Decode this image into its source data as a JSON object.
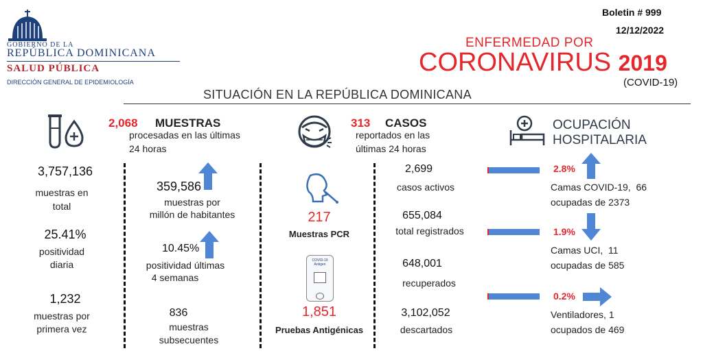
{
  "header": {
    "logo": {
      "line1": "GOBIERNO DE LA",
      "line2": "REPÚBLICA DOMINICANA",
      "line3": "SALUD PÚBLICA",
      "line4": "DIRECCIÓN GENERAL DE EPIDEMIOLOGÍA"
    },
    "bulletin": "Boletin # 999",
    "date": "12/12/2022",
    "title_top": "ENFERMEDAD POR",
    "title_main": "CORONAVIRUS",
    "title_year": "2019",
    "title_code": "(COVID-19)",
    "subtitle": "SITUACIÓN EN LA REPÚBLICA DOMINICANA"
  },
  "muestras": {
    "icon": "test-tube-drop-icon",
    "new_value": "2,068",
    "heading": "MUESTRAS",
    "desc_line1": "procesadas en las últimas",
    "desc_line2": "24 horas",
    "total_value": "3,757,136",
    "total_line1": "muestras en",
    "total_line2": "total",
    "positividad_value": "25.41%",
    "positividad_line1": "positividad",
    "positividad_line2": "diaria",
    "primera_value": "1,232",
    "primera_line1": "muestras por",
    "primera_line2": "primera vez",
    "per_million_value": "359,586",
    "per_million_line1": "muestras por",
    "per_million_line2": "millón de habitantes",
    "pos4_value": "10.45%",
    "pos4_line1": "positividad últimas",
    "pos4_line2": "4 semanas",
    "subsecuentes_value": "836",
    "subsecuentes_line1": "muestras",
    "subsecuentes_line2": "subsecuentes"
  },
  "pruebas": {
    "pcr_icon": "nasal-swab-icon",
    "pcr_value": "217",
    "pcr_label": "Muestras PCR",
    "antigen_icon": "antigen-test-icon",
    "antigen_value": "1,851",
    "antigen_label": "Pruebas Antigénicas",
    "antigen_kit_label": "COVID-19 Antigen"
  },
  "casos": {
    "icon": "sick-face-mask-icon",
    "new_value": "313",
    "heading": "CASOS",
    "desc_line1": "reportados en las",
    "desc_line2": "últimas 24 horas",
    "activos_value": "2,699",
    "activos_label": "casos activos",
    "total_value": "655,084",
    "total_label": "total registrados",
    "recuperados_value": "648,001",
    "recuperados_label": "recuperados",
    "descartados_value": "3,102,052",
    "descartados_label": "descartados"
  },
  "ocupacion": {
    "icon": "hospital-bed-icon",
    "heading_line1": "OCUPACIÓN",
    "heading_line2": "HOSPITALARIA",
    "covid_pct": "2.8%",
    "covid_line1": "Camas COVID-19,  66",
    "covid_line2": "ocupadas de 2373",
    "covid_fill": 0.028,
    "uci_pct": "1.9%",
    "uci_line1": "Camas UCI,  11",
    "uci_line2": "ocupadas de 585",
    "uci_fill": 0.019,
    "vent_pct": "0.2%",
    "vent_line1": "Ventiladores, 1",
    "vent_line2": "ocupados de 469",
    "vent_fill": 0.002
  },
  "colors": {
    "accent_red": "#e5262b",
    "arrow_blue": "#4f86d6",
    "logo_blue": "#1d3f7a"
  }
}
